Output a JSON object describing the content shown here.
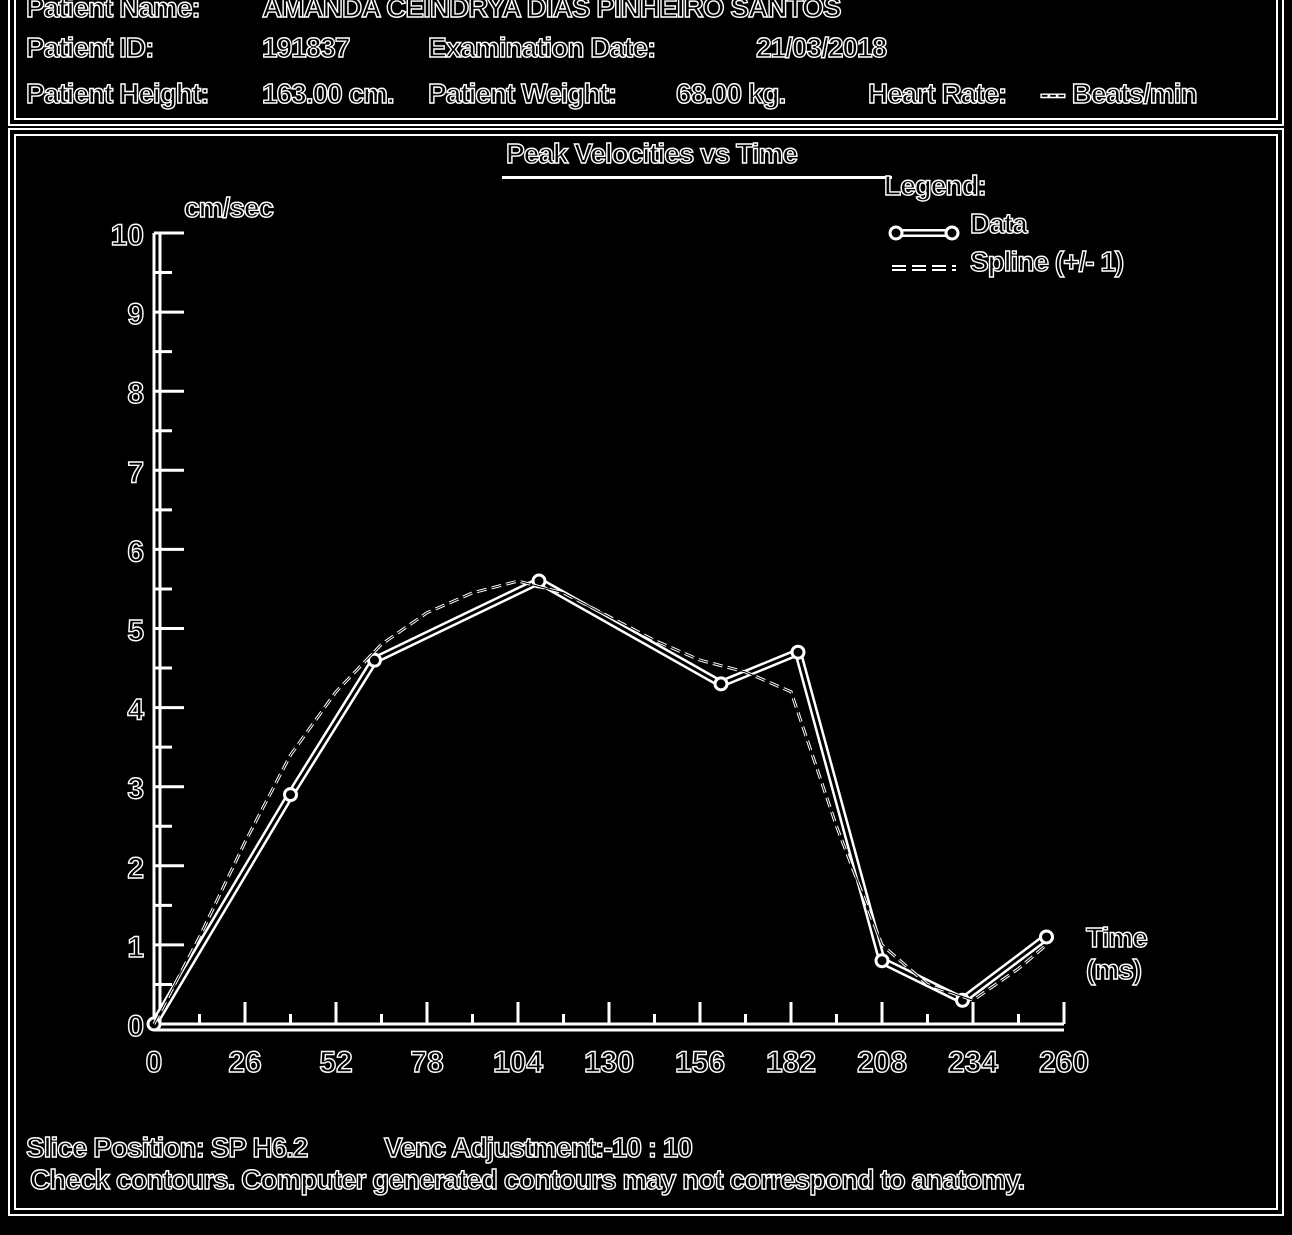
{
  "header": {
    "patient_name_label": "Patient Name:",
    "patient_name_value": "AMANDA CEINDRYA DIAS PINHEIRO SANTOS",
    "patient_id_label": "Patient ID:",
    "patient_id_value": "191837",
    "exam_date_label": "Examination Date:",
    "exam_date_value": "21/03/2018",
    "height_label": "Patient Height:",
    "height_value": "163.00 cm.",
    "weight_label": "Patient Weight:",
    "weight_value": "68.00 kg.",
    "heart_rate_label": "Heart Rate:",
    "heart_rate_value": "--- Beats/min"
  },
  "footer": {
    "slice_position": "Slice Position: SP H6.2",
    "venc_adjustment": "Venc Adjustment:-10 : 10",
    "warning": "Check contours. Computer generated contours may not correspond to anatomy."
  },
  "chart_data": {
    "type": "line",
    "title": "Peak Velocities vs Time",
    "ylabel": "cm/sec",
    "xlabel": "Time (ms)",
    "xlim": [
      0,
      260
    ],
    "ylim": [
      0,
      10
    ],
    "x_ticks": [
      0,
      26,
      52,
      78,
      104,
      130,
      156,
      182,
      208,
      234,
      260
    ],
    "y_ticks": [
      0,
      1,
      2,
      3,
      4,
      5,
      6,
      7,
      8,
      9,
      10
    ],
    "legend_title": "Legend:",
    "legend_position": "top-right",
    "series": [
      {
        "name": "Data",
        "style": "solid-markers",
        "x": [
          0,
          39,
          63,
          110,
          162,
          184,
          208,
          231,
          255
        ],
        "y": [
          0,
          2.9,
          4.6,
          5.6,
          4.3,
          4.7,
          0.8,
          0.3,
          1.1
        ]
      },
      {
        "name": "Spline (+/- 1)",
        "style": "dashed",
        "x": [
          0,
          13,
          26,
          39,
          52,
          65,
          78,
          91,
          104,
          117,
          130,
          143,
          156,
          169,
          182,
          195,
          208,
          221,
          234,
          247,
          255
        ],
        "y": [
          0,
          1.1,
          2.3,
          3.4,
          4.2,
          4.8,
          5.2,
          5.45,
          5.6,
          5.45,
          5.15,
          4.85,
          4.6,
          4.45,
          4.2,
          2.5,
          1.0,
          0.5,
          0.3,
          0.7,
          1.0
        ]
      }
    ]
  }
}
